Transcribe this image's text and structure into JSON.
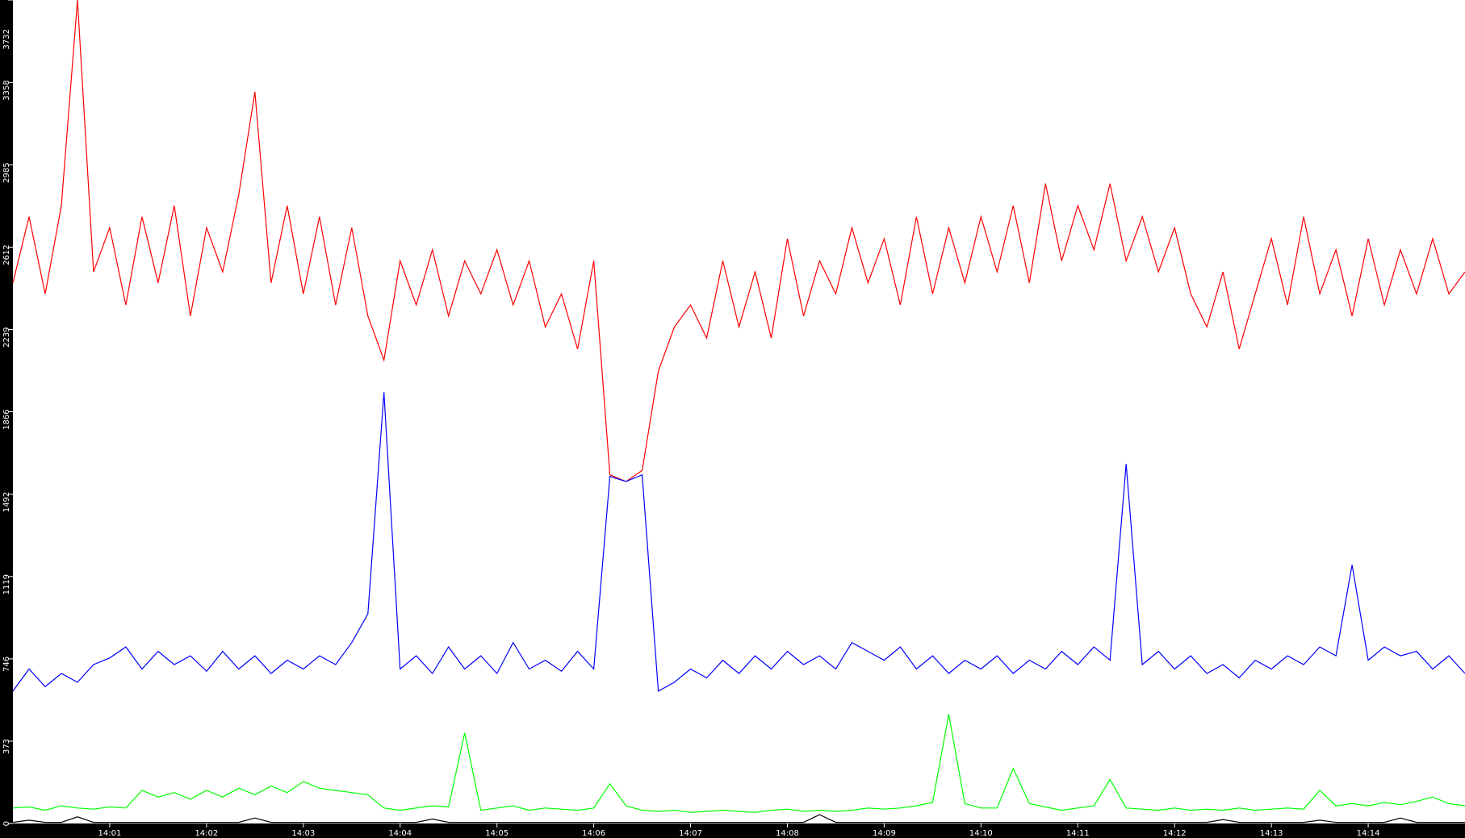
{
  "chart_data": {
    "type": "line",
    "title": "",
    "xlabel": "",
    "ylabel": "",
    "x_range": [
      "14:00:00",
      "14:15:00"
    ],
    "ylim": [
      0,
      3732
    ],
    "grid": false,
    "legend": "none",
    "y_ticks": [
      "0",
      "373",
      "746",
      "1119",
      "1492",
      "1866",
      "2239",
      "2612",
      "2985",
      "3358",
      "3732"
    ],
    "x_ticks": [
      "14:01",
      "14:02",
      "14:03",
      "14:04",
      "14:05",
      "14:06",
      "14:07",
      "14:08",
      "14:09",
      "14:10",
      "14:11",
      "14:12",
      "14:13",
      "14:14"
    ],
    "x_seconds_after_14_00": [
      0,
      10,
      20,
      30,
      40,
      50,
      60,
      70,
      80,
      90,
      100,
      110,
      120,
      130,
      140,
      150,
      160,
      170,
      180,
      190,
      200,
      210,
      220,
      230,
      240,
      250,
      260,
      270,
      280,
      290,
      300,
      310,
      320,
      330,
      340,
      350,
      360,
      370,
      380,
      390,
      400,
      410,
      420,
      430,
      440,
      450,
      460,
      470,
      480,
      490,
      500,
      510,
      520,
      530,
      540,
      550,
      560,
      570,
      580,
      590,
      600,
      610,
      620,
      630,
      640,
      650,
      660,
      670,
      680,
      690,
      700,
      710,
      720,
      730,
      740,
      750,
      760,
      770,
      780,
      790,
      800,
      810,
      820,
      830,
      840,
      850,
      860,
      870,
      880,
      890,
      900
    ],
    "series": [
      {
        "color": "#ff0000",
        "values": [
          2450,
          2750,
          2400,
          2800,
          3732,
          2500,
          2700,
          2350,
          2750,
          2450,
          2800,
          2300,
          2700,
          2500,
          2850,
          3316,
          2450,
          2800,
          2400,
          2750,
          2350,
          2700,
          2300,
          2100,
          2550,
          2350,
          2600,
          2300,
          2550,
          2400,
          2600,
          2350,
          2550,
          2250,
          2400,
          2150,
          2550,
          1580,
          1550,
          1600,
          2050,
          2250,
          2350,
          2200,
          2550,
          2250,
          2500,
          2200,
          2650,
          2300,
          2550,
          2400,
          2700,
          2450,
          2650,
          2350,
          2750,
          2400,
          2700,
          2450,
          2750,
          2500,
          2800,
          2450,
          2900,
          2550,
          2800,
          2600,
          2900,
          2550,
          2750,
          2500,
          2700,
          2400,
          2250,
          2500,
          2150,
          2400,
          2650,
          2350,
          2750,
          2400,
          2600,
          2300,
          2650,
          2350,
          2600,
          2400,
          2650,
          2400,
          2500
        ]
      },
      {
        "color": "#0000ff",
        "values": [
          600,
          700,
          620,
          680,
          640,
          720,
          750,
          800,
          700,
          780,
          720,
          760,
          690,
          780,
          700,
          760,
          680,
          740,
          700,
          760,
          720,
          820,
          950,
          1954,
          700,
          760,
          680,
          800,
          700,
          760,
          680,
          820,
          700,
          740,
          690,
          780,
          700,
          1573,
          1550,
          1580,
          600,
          640,
          700,
          660,
          740,
          680,
          760,
          700,
          780,
          720,
          760,
          700,
          820,
          780,
          740,
          800,
          700,
          760,
          680,
          740,
          700,
          760,
          680,
          740,
          700,
          780,
          720,
          800,
          740,
          1629,
          720,
          780,
          700,
          760,
          680,
          720,
          660,
          740,
          700,
          760,
          720,
          800,
          760,
          1172,
          740,
          800,
          760,
          780,
          700,
          760,
          680
        ]
      },
      {
        "color": "#00ff00",
        "values": [
          70,
          75,
          60,
          80,
          70,
          65,
          75,
          70,
          150,
          120,
          140,
          110,
          150,
          120,
          160,
          130,
          170,
          140,
          190,
          160,
          150,
          140,
          130,
          70,
          60,
          70,
          80,
          75,
          410,
          60,
          70,
          80,
          60,
          70,
          65,
          60,
          70,
          180,
          80,
          60,
          55,
          60,
          50,
          55,
          60,
          55,
          50,
          60,
          65,
          55,
          60,
          55,
          60,
          70,
          65,
          70,
          80,
          95,
          495,
          90,
          70,
          70,
          250,
          90,
          75,
          60,
          70,
          80,
          200,
          70,
          65,
          60,
          70,
          60,
          65,
          60,
          70,
          60,
          65,
          70,
          65,
          150,
          80,
          90,
          80,
          95,
          85,
          100,
          120,
          90,
          80
        ]
      },
      {
        "color": "#000000",
        "values": [
          5,
          15,
          5,
          5,
          30,
          5,
          5,
          5,
          5,
          5,
          5,
          5,
          5,
          5,
          5,
          25,
          5,
          5,
          5,
          5,
          5,
          5,
          5,
          5,
          5,
          5,
          20,
          5,
          5,
          5,
          5,
          5,
          5,
          5,
          5,
          5,
          5,
          5,
          5,
          5,
          5,
          5,
          5,
          5,
          5,
          5,
          5,
          5,
          5,
          5,
          40,
          5,
          5,
          5,
          5,
          5,
          5,
          5,
          5,
          5,
          5,
          5,
          5,
          5,
          5,
          5,
          5,
          5,
          5,
          5,
          5,
          5,
          5,
          5,
          5,
          18,
          5,
          5,
          5,
          5,
          5,
          15,
          5,
          5,
          5,
          5,
          25,
          5,
          5,
          5,
          5
        ]
      }
    ]
  }
}
